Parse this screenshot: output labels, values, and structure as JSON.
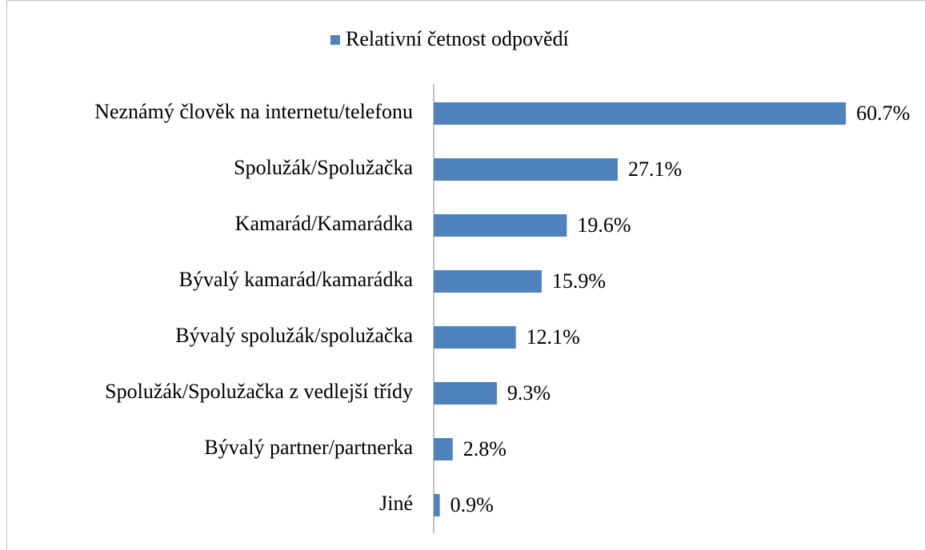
{
  "chart_data": {
    "type": "bar",
    "orientation": "horizontal",
    "legend": "top",
    "series": [
      {
        "name": "Relativní četnost odpovědí",
        "color": "#4f81bd",
        "values": [
          60.7,
          27.1,
          19.6,
          15.9,
          12.1,
          9.3,
          2.8,
          0.9
        ],
        "value_labels": [
          "60.7%",
          "27.1%",
          "19.6%",
          "15.9%",
          "12.1%",
          "9.3%",
          "2.8%",
          "0.9%"
        ]
      }
    ],
    "categories": [
      "Neznámý člověk na internetu/telefonu",
      "Spolužák/Spolužačka",
      "Kamarád/Kamarádka",
      "Bývalý kamarád/kamarádka",
      "Bývalý spolužák/spolužačka",
      "Spolužák/Spolužačka z vedlejší třídy",
      "Bývalý partner/partnerka",
      "Jiné"
    ],
    "xlim": [
      0,
      70
    ]
  }
}
